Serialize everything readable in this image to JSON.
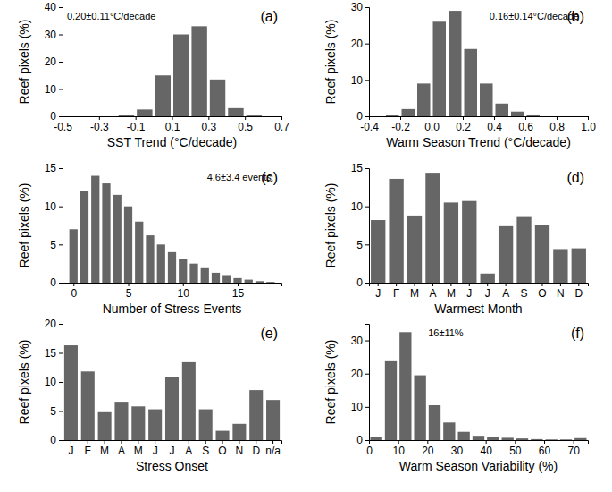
{
  "chart_data": [
    {
      "type": "histogram",
      "title": "(a)",
      "xlabel": "SST Trend (°C/decade)",
      "ylabel": "Reef pixels (%)",
      "annotations": [
        "0.20±0.11°C/decade"
      ],
      "bins": [
        -0.2,
        -0.1,
        0.0,
        0.1,
        0.2,
        0.3,
        0.4,
        0.5,
        0.6
      ],
      "values": [
        0.5,
        2.5,
        15,
        30,
        33,
        13.5,
        3,
        0.3
      ],
      "color": "#666666",
      "xlim": [
        -0.5,
        0.7
      ],
      "xticks": [
        -0.5,
        -0.3,
        -0.1,
        0.1,
        0.3,
        0.5,
        0.7
      ],
      "ylim": [
        0,
        40
      ],
      "yticks": [
        0,
        10,
        20,
        30,
        40
      ]
    },
    {
      "type": "histogram",
      "title": "(b)",
      "xlabel": "Warm Season Trend (°C/decade)",
      "ylabel": "Reef pixels (%)",
      "annotations": [
        "0.16±0.14°C/decade"
      ],
      "bins": [
        -0.3,
        -0.2,
        -0.1,
        0.0,
        0.1,
        0.2,
        0.3,
        0.4,
        0.5,
        0.6,
        0.7
      ],
      "values": [
        0.3,
        2,
        9,
        26,
        29,
        18.5,
        9,
        3.5,
        1.3,
        0.5
      ],
      "color": "#666666",
      "xlim": [
        -0.4,
        1.0
      ],
      "xticks": [
        -0.4,
        -0.2,
        {
          "value": 0,
          "label": "0.0"
        },
        0.2,
        0.4,
        0.6,
        0.8,
        {
          "value": 1,
          "label": "1.0"
        }
      ],
      "ylim": [
        0,
        30
      ],
      "yticks": [
        0,
        10,
        20,
        30
      ]
    },
    {
      "type": "histogram",
      "title": "(c)",
      "xlabel": "Number of Stress Events",
      "ylabel": "Reef pixels (%)",
      "annotations": [
        "4.6±3.4 events"
      ],
      "bins": [
        -0.5,
        0.5,
        1.5,
        2.5,
        3.5,
        4.5,
        5.5,
        6.5,
        7.5,
        8.5,
        9.5,
        10.5,
        11.5,
        12.5,
        13.5,
        14.5,
        15.5,
        16.5,
        17.5,
        18.5
      ],
      "values": [
        7,
        12,
        14,
        13,
        11.5,
        10,
        8,
        6.2,
        5,
        4,
        3.1,
        2.5,
        1.9,
        1.3,
        1,
        0.6,
        0.4,
        0.2,
        0.1
      ],
      "color": "#666666",
      "xlim": [
        -1,
        19
      ],
      "xticks": [
        0,
        5,
        10,
        15
      ],
      "ylim": [
        0,
        15
      ],
      "yticks": [
        0,
        5,
        10,
        15
      ]
    },
    {
      "type": "bar",
      "title": "(d)",
      "xlabel": "Warmest Month",
      "ylabel": "Reef pixels (%)",
      "categories": [
        "J",
        "F",
        "M",
        "A",
        "M",
        "J",
        "J",
        "A",
        "S",
        "O",
        "N",
        "D"
      ],
      "values": [
        8.2,
        13.6,
        8.8,
        14.4,
        10.5,
        10.7,
        1.2,
        7.4,
        8.6,
        7.5,
        4.4,
        4.5
      ],
      "color": "#666666",
      "ylim": [
        0,
        15
      ],
      "yticks": [
        0,
        5,
        10,
        15
      ]
    },
    {
      "type": "bar",
      "title": "(e)",
      "xlabel": "Stress Onset",
      "ylabel": "Reef pixels (%)",
      "categories": [
        "J",
        "F",
        "M",
        "A",
        "M",
        "J",
        "J",
        "A",
        "S",
        "O",
        "N",
        "D",
        "n/a"
      ],
      "values": [
        16.3,
        11.8,
        4.8,
        6.6,
        5.8,
        5.3,
        10.8,
        13.4,
        5.3,
        1.6,
        2.8,
        8.6,
        6.9
      ],
      "color": "#666666",
      "ylim": [
        0,
        20
      ],
      "yticks": [
        0,
        5,
        10,
        15,
        20
      ]
    },
    {
      "type": "histogram",
      "title": "(f)",
      "xlabel": "Warm Season Variability (%)",
      "ylabel": "Reef pixels (%)",
      "annotations": [
        "16±11%"
      ],
      "bins": [
        0,
        5,
        10,
        15,
        20,
        25,
        30,
        35,
        40,
        45,
        50,
        55,
        60,
        65,
        70,
        75
      ],
      "values": [
        1,
        24,
        32.5,
        19.5,
        10.5,
        5.3,
        2.5,
        1.3,
        1,
        0.7,
        0.5,
        0.3,
        0.2,
        0.2,
        0.6
      ],
      "color": "#666666",
      "xlim": [
        0,
        75
      ],
      "xticks": [
        0,
        10,
        20,
        30,
        40,
        50,
        60,
        70
      ],
      "ylim": [
        0,
        35
      ],
      "yticks": [
        0,
        10,
        20,
        30
      ]
    }
  ]
}
